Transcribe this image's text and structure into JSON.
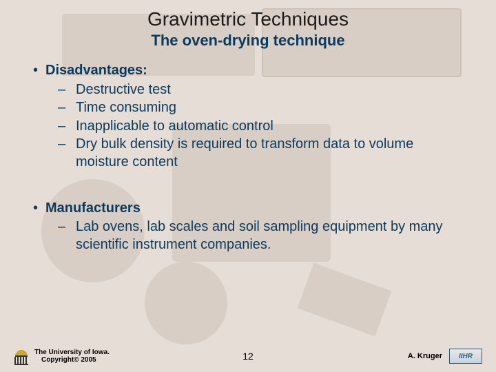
{
  "colors": {
    "background": "#e6ddd6",
    "shape": "#d9cec5",
    "text_dark": "#0b3a5c",
    "title_color": "#1a1a1a"
  },
  "typography": {
    "title_fontsize": 28,
    "subtitle_fontsize": 22,
    "body_fontsize": 20,
    "footer_fontsize": 10
  },
  "title": "Gravimetric Techniques",
  "subtitle": "The oven-drying technique",
  "sections": [
    {
      "heading": "Disadvantages:",
      "items": [
        "Destructive test",
        "Time consuming",
        "Inapplicable to automatic control",
        "Dry bulk density is required to transform data to volume moisture content"
      ]
    },
    {
      "heading": "Manufacturers",
      "items": [
        "Lab ovens, lab scales and soil sampling equipment by many scientific instrument companies."
      ]
    }
  ],
  "footer": {
    "org_line1": "The University of Iowa.",
    "org_line2": "Copyright© 2005",
    "page_number": "12",
    "author": "A. Kruger",
    "right_logo_text": "IIHR"
  }
}
